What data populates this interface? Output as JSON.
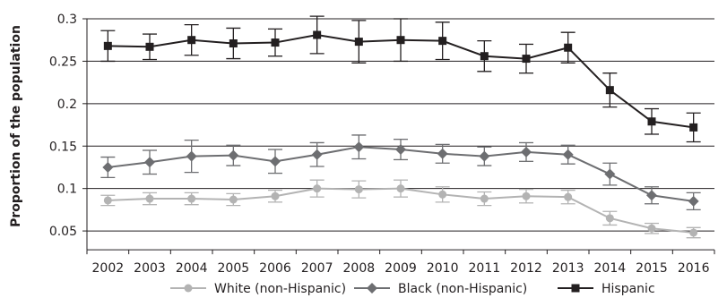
{
  "chart_data": {
    "type": "line",
    "title": "",
    "xlabel": "",
    "ylabel": "Proportion of the population",
    "x": [
      "2002",
      "2003",
      "2004",
      "2005",
      "2006",
      "2007",
      "2008",
      "2009",
      "2010",
      "2011",
      "2012",
      "2013",
      "2014",
      "2015",
      "2016"
    ],
    "ylim": [
      0.05,
      0.3
    ],
    "yticks": [
      "0.3",
      "0.25",
      "0.2",
      "0.15",
      "0.1",
      "0.05"
    ],
    "ytick_values": [
      0.3,
      0.25,
      0.2,
      0.15,
      0.1,
      0.05
    ],
    "grid": "horizontal",
    "legend_position": "bottom",
    "series": [
      {
        "name": "White (non-Hispanic)",
        "color": "#b3b3b3",
        "marker": "circle",
        "values": [
          0.086,
          0.088,
          0.088,
          0.087,
          0.091,
          0.1,
          0.099,
          0.1,
          0.093,
          0.088,
          0.091,
          0.09,
          0.065,
          0.053,
          0.048
        ],
        "error": [
          0.006,
          0.007,
          0.007,
          0.007,
          0.007,
          0.01,
          0.01,
          0.01,
          0.009,
          0.008,
          0.008,
          0.008,
          0.008,
          0.006,
          0.006
        ]
      },
      {
        "name": "Black (non-Hispanic)",
        "color": "#6d6e71",
        "marker": "diamond",
        "values": [
          0.125,
          0.131,
          0.138,
          0.139,
          0.132,
          0.14,
          0.149,
          0.146,
          0.141,
          0.138,
          0.143,
          0.14,
          0.117,
          0.092,
          0.085
        ],
        "error": [
          0.012,
          0.014,
          0.019,
          0.012,
          0.014,
          0.014,
          0.014,
          0.012,
          0.011,
          0.011,
          0.011,
          0.011,
          0.013,
          0.01,
          0.01
        ]
      },
      {
        "name": "Hispanic",
        "color": "#231f20",
        "marker": "square",
        "values": [
          0.268,
          0.267,
          0.275,
          0.271,
          0.272,
          0.281,
          0.273,
          0.275,
          0.274,
          0.256,
          0.253,
          0.266,
          0.216,
          0.179,
          0.172
        ],
        "error": [
          0.018,
          0.015,
          0.018,
          0.018,
          0.016,
          0.022,
          0.025,
          0.025,
          0.022,
          0.018,
          0.017,
          0.018,
          0.02,
          0.015,
          0.017
        ]
      }
    ]
  }
}
